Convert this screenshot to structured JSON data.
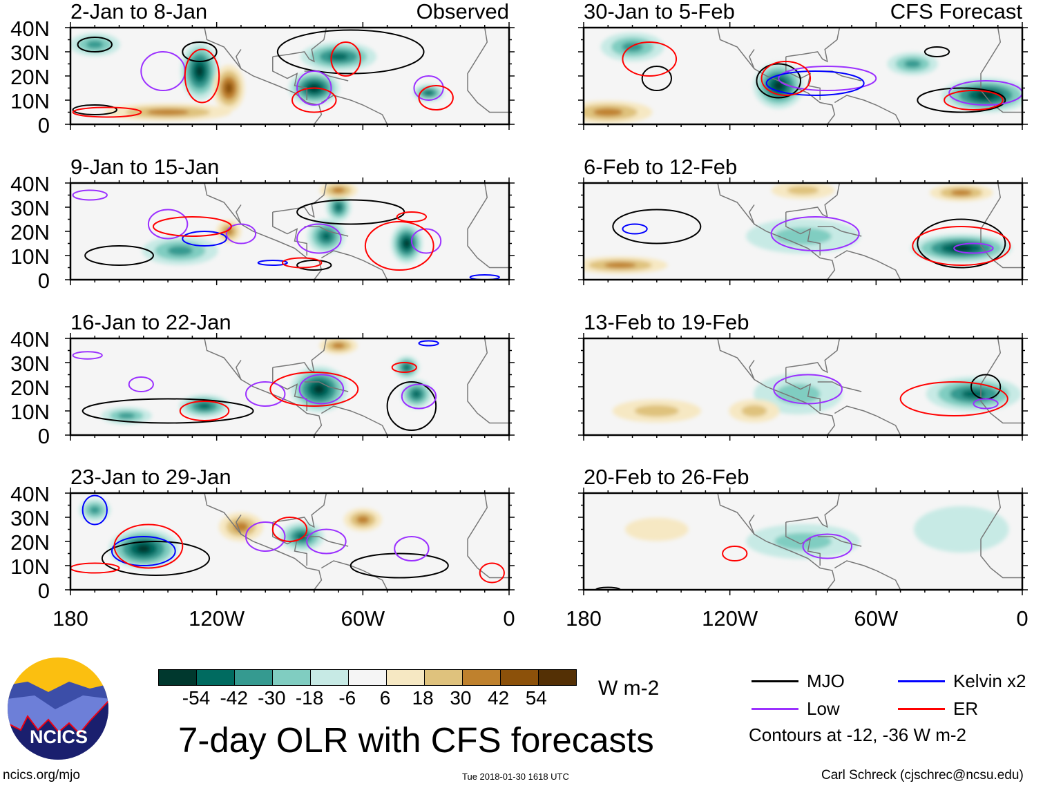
{
  "observed_label": "Observed",
  "forecast_label": "CFS Forecast",
  "lat_labels": [
    "40N",
    "30N",
    "20N",
    "10N",
    "0"
  ],
  "lon_labels": [
    "180",
    "120W",
    "60W",
    "0"
  ],
  "colors": {
    "MJO": "#000000",
    "Low": "#9b30ff",
    "Kelvin": "#0000ff",
    "ER": "#ff0000"
  },
  "chart_data": {
    "type": "heatmap",
    "title": "7-day OLR with CFS forecasts",
    "units": "W m-2",
    "contour_levels_text": "Contours at -12, -36 W m-2",
    "color_levels": [
      -54,
      -42,
      -30,
      -18,
      -6,
      6,
      18,
      30,
      42,
      54
    ],
    "color_palette": [
      "#00382e",
      "#006b60",
      "#359a90",
      "#80cdc1",
      "#c7eae5",
      "#f5f5f5",
      "#f6e8c3",
      "#dfc27d",
      "#bf812d",
      "#8c510a",
      "#543005"
    ],
    "lon_range": [
      -180,
      0
    ],
    "lat_range": [
      0,
      40
    ],
    "panels": [
      {
        "title": "2-Jan to 8-Jan",
        "kind": "observed",
        "anoms": [
          [
            -127,
            22,
            -54,
            6,
            10
          ],
          [
            -80,
            15,
            -54,
            8,
            6
          ],
          [
            -70,
            28,
            -42,
            12,
            5
          ],
          [
            -115,
            15,
            42,
            5,
            8
          ],
          [
            -33,
            13,
            -42,
            5,
            3
          ],
          [
            -170,
            33,
            -30,
            8,
            4
          ],
          [
            -140,
            5,
            30,
            20,
            3
          ]
        ],
        "contours": [
          [
            "MJO",
            -127,
            30,
            7,
            4
          ],
          [
            "MJO",
            -65,
            30,
            30,
            9
          ],
          [
            "MJO",
            -170,
            33,
            7,
            3
          ],
          [
            "MJO",
            -170,
            6,
            9,
            2
          ],
          [
            "Low",
            -142,
            22,
            9,
            8
          ],
          [
            "Low",
            -80,
            15,
            7,
            7
          ],
          [
            "Low",
            -33,
            15,
            6,
            5
          ],
          [
            "ER",
            -126,
            20,
            7,
            11
          ],
          [
            "ER",
            -80,
            10,
            9,
            5
          ],
          [
            "ER",
            -67,
            27,
            6,
            7
          ],
          [
            "ER",
            -30,
            11,
            7,
            5
          ],
          [
            "ER",
            -165,
            5,
            14,
            2
          ]
        ]
      },
      {
        "title": "9-Jan to 15-Jan",
        "kind": "observed",
        "anoms": [
          [
            -70,
            30,
            -42,
            4,
            5
          ],
          [
            -75,
            18,
            -42,
            6,
            6
          ],
          [
            -42,
            15,
            -54,
            5,
            7
          ],
          [
            -135,
            12,
            -30,
            12,
            5
          ],
          [
            -115,
            20,
            30,
            4,
            4
          ],
          [
            -70,
            37,
            30,
            6,
            3
          ]
        ],
        "contours": [
          [
            "MJO",
            -65,
            28,
            22,
            5
          ],
          [
            "MJO",
            -160,
            10,
            14,
            4
          ],
          [
            "MJO",
            -80,
            6,
            7,
            2
          ],
          [
            "Low",
            -140,
            23,
            8,
            6
          ],
          [
            "Low",
            -110,
            19,
            6,
            4
          ],
          [
            "Low",
            -78,
            17,
            9,
            6
          ],
          [
            "Low",
            -34,
            16,
            6,
            5
          ],
          [
            "Low",
            -172,
            35,
            7,
            2
          ],
          [
            "Kelvin",
            -125,
            17,
            9,
            3
          ],
          [
            "Kelvin",
            -97,
            7,
            6,
            1
          ],
          [
            "Kelvin",
            -10,
            1,
            6,
            1
          ],
          [
            "ER",
            -45,
            14,
            14,
            10
          ],
          [
            "ER",
            -130,
            22,
            16,
            4
          ],
          [
            "ER",
            -85,
            7,
            8,
            2
          ],
          [
            "ER",
            -40,
            26,
            6,
            2
          ]
        ]
      },
      {
        "title": "16-Jan to 22-Jan",
        "kind": "observed",
        "anoms": [
          [
            -78,
            19,
            -54,
            9,
            8
          ],
          [
            -125,
            12,
            -42,
            8,
            4
          ],
          [
            -42,
            28,
            -42,
            4,
            4
          ],
          [
            -38,
            17,
            -42,
            5,
            5
          ],
          [
            -157,
            8,
            -30,
            8,
            3
          ],
          [
            -70,
            37,
            30,
            6,
            3
          ]
        ],
        "contours": [
          [
            "MJO",
            -140,
            10,
            35,
            5
          ],
          [
            "MJO",
            -40,
            12,
            10,
            10
          ],
          [
            "Low",
            -77,
            19,
            9,
            6
          ],
          [
            "Low",
            -100,
            17,
            8,
            5
          ],
          [
            "Low",
            -37,
            16,
            7,
            5
          ],
          [
            "Low",
            -151,
            21,
            5,
            3
          ],
          [
            "Low",
            -173,
            33,
            6,
            1.5
          ],
          [
            "Kelvin",
            -33,
            38,
            4,
            1
          ],
          [
            "ER",
            -80,
            19,
            18,
            7
          ],
          [
            "ER",
            -125,
            10,
            10,
            4
          ],
          [
            "ER",
            -43,
            28,
            5,
            2
          ]
        ]
      },
      {
        "title": "23-Jan to 29-Jan",
        "kind": "observed",
        "anoms": [
          [
            -150,
            17,
            -54,
            11,
            7
          ],
          [
            -85,
            22,
            -42,
            7,
            5
          ],
          [
            -110,
            26,
            30,
            7,
            5
          ],
          [
            -60,
            29,
            30,
            6,
            4
          ],
          [
            -170,
            33,
            -30,
            5,
            4
          ]
        ],
        "contours": [
          [
            "MJO",
            -145,
            13,
            22,
            7
          ],
          [
            "MJO",
            -45,
            10,
            20,
            5
          ],
          [
            "Low",
            -100,
            22,
            8,
            6
          ],
          [
            "Low",
            -75,
            20,
            8,
            5
          ],
          [
            "Low",
            -40,
            17,
            7,
            5
          ],
          [
            "Kelvin",
            -150,
            16,
            13,
            6
          ],
          [
            "Kelvin",
            -170,
            33,
            5,
            6
          ],
          [
            "ER",
            -148,
            18,
            14,
            9
          ],
          [
            "ER",
            -170,
            9,
            10,
            2
          ],
          [
            "ER",
            -90,
            25,
            7,
            5
          ],
          [
            "ER",
            -7,
            7,
            5,
            4
          ]
        ]
      },
      {
        "title": "30-Jan to 5-Feb",
        "kind": "forecast",
        "anoms": [
          [
            -100,
            16,
            -54,
            8,
            8
          ],
          [
            -15,
            12,
            -54,
            14,
            6
          ],
          [
            -160,
            32,
            -30,
            10,
            5
          ],
          [
            -45,
            25,
            -30,
            8,
            4
          ],
          [
            -170,
            5,
            30,
            14,
            4
          ]
        ],
        "contours": [
          [
            "MJO",
            -150,
            19,
            6,
            5
          ],
          [
            "MJO",
            -100,
            18,
            9,
            7
          ],
          [
            "MJO",
            -35,
            30,
            5,
            2
          ],
          [
            "MJO",
            -25,
            10,
            18,
            5
          ],
          [
            "Low",
            -80,
            19,
            20,
            5
          ],
          [
            "Low",
            -15,
            13,
            15,
            5
          ],
          [
            "Kelvin",
            -85,
            17,
            20,
            5
          ],
          [
            "ER",
            -153,
            27,
            11,
            7
          ],
          [
            "ER",
            -97,
            19,
            10,
            7
          ],
          [
            "ER",
            -20,
            10,
            12,
            4
          ]
        ]
      },
      {
        "title": "6-Feb to 12-Feb",
        "kind": "forecast",
        "anoms": [
          [
            -25,
            13,
            -54,
            16,
            5
          ],
          [
            -90,
            18,
            -18,
            18,
            6
          ],
          [
            -165,
            6,
            30,
            15,
            3
          ],
          [
            -25,
            36,
            30,
            10,
            3
          ],
          [
            -90,
            37,
            18,
            10,
            3
          ]
        ],
        "contours": [
          [
            "MJO",
            -150,
            22,
            18,
            7
          ],
          [
            "MJO",
            -25,
            15,
            18,
            10
          ],
          [
            "Low",
            -85,
            19,
            18,
            7
          ],
          [
            "Low",
            -20,
            13,
            8,
            2
          ],
          [
            "Kelvin",
            -159,
            21,
            5,
            2
          ],
          [
            "ER",
            -25,
            14,
            20,
            8
          ]
        ]
      },
      {
        "title": "13-Feb to 19-Feb",
        "kind": "forecast",
        "anoms": [
          [
            -20,
            17,
            -42,
            15,
            6
          ],
          [
            -92,
            17,
            -18,
            14,
            7
          ],
          [
            -150,
            10,
            18,
            14,
            4
          ],
          [
            -110,
            10,
            18,
            8,
            4
          ]
        ],
        "contours": [
          [
            "MJO",
            -15,
            20,
            6,
            5
          ],
          [
            "Low",
            -88,
            19,
            14,
            6
          ],
          [
            "Low",
            -15,
            13,
            5,
            2
          ],
          [
            "ER",
            -28,
            15,
            22,
            7
          ]
        ]
      },
      {
        "title": "20-Feb to 26-Feb",
        "kind": "forecast",
        "anoms": [
          [
            -90,
            20,
            -18,
            18,
            6
          ],
          [
            -25,
            25,
            -6,
            15,
            8
          ],
          [
            -150,
            25,
            6,
            10,
            4
          ]
        ],
        "contours": [
          [
            "Low",
            -80,
            18,
            10,
            5
          ],
          [
            "ER",
            -118,
            15,
            5,
            3
          ],
          [
            "MJO",
            -170,
            0,
            5,
            1
          ]
        ]
      }
    ]
  },
  "colorbar": {
    "ticks": [
      "-54",
      "-42",
      "-30",
      "-18",
      "-6",
      "6",
      "18",
      "30",
      "42",
      "54"
    ],
    "units": "W m-2"
  },
  "legend": {
    "items": [
      {
        "label": "MJO",
        "key": "MJO"
      },
      {
        "label": "Kelvin x2",
        "key": "Kelvin"
      },
      {
        "label": "Low",
        "key": "Low"
      },
      {
        "label": "ER",
        "key": "ER"
      }
    ],
    "note": "Contours at -12, -36 W m-2"
  },
  "title": "7-day OLR with CFS forecasts",
  "logo_text": "NCICS",
  "footer": {
    "url": "ncics.org/mjo",
    "timestamp": "Tue 2018-01-30 1618 UTC",
    "author": "Carl Schreck (cjschrec@ncsu.edu)"
  }
}
